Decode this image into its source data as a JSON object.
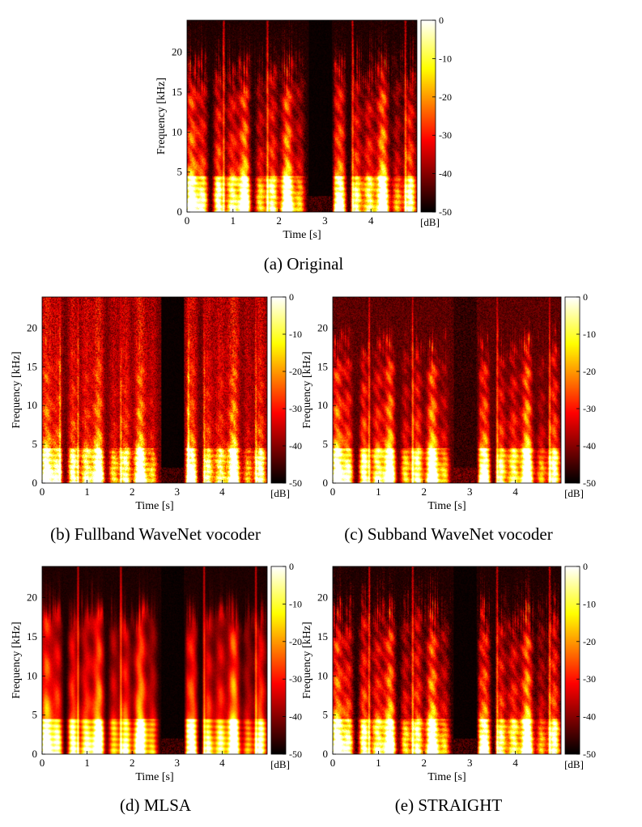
{
  "chart_data": [
    {
      "type": "heatmap",
      "caption": "(a) Original",
      "xlabel": "Time [s]",
      "ylabel": "Frequency [kHz]",
      "xlim": [
        0,
        5
      ],
      "ylim": [
        0,
        24
      ],
      "xticks": [
        0,
        1,
        2,
        3,
        4
      ],
      "yticks": [
        0,
        5,
        10,
        15,
        20
      ],
      "colorbar": {
        "label": "[dB]",
        "range": [
          -50,
          0
        ],
        "ticks": [
          0,
          -10,
          -20,
          -30,
          -40,
          -50
        ]
      },
      "colormap": "hot",
      "silence_intervals_s": [
        [
          2.65,
          3.15
        ]
      ],
      "transient_times_s": [
        0.8,
        1.75,
        3.6,
        4.75
      ],
      "noise_floor": "low",
      "smoothness": "natural"
    },
    {
      "type": "heatmap",
      "caption": "(b) Fullband WaveNet vocoder",
      "xlabel": "Time [s]",
      "ylabel": "Frequency [kHz]",
      "xlim": [
        0,
        5
      ],
      "ylim": [
        0,
        24
      ],
      "xticks": [
        0,
        1,
        2,
        3,
        4
      ],
      "yticks": [
        0,
        5,
        10,
        15,
        20
      ],
      "colorbar": {
        "label": "[dB]",
        "range": [
          -50,
          0
        ],
        "ticks": [
          0,
          -10,
          -20,
          -30,
          -40,
          -50
        ]
      },
      "colormap": "hot",
      "silence_intervals_s": [
        [
          2.65,
          3.15
        ]
      ],
      "transient_times_s": [
        0.4,
        0.8,
        1.75,
        3.25,
        3.6,
        4.75
      ],
      "noise_floor": "high",
      "smoothness": "noisy"
    },
    {
      "type": "heatmap",
      "caption": "(c) Subband WaveNet vocoder",
      "xlabel": "Time [s]",
      "ylabel": "Frequency [kHz]",
      "xlim": [
        0,
        5
      ],
      "ylim": [
        0,
        24
      ],
      "xticks": [
        0,
        1,
        2,
        3,
        4
      ],
      "yticks": [
        0,
        5,
        10,
        15,
        20
      ],
      "colorbar": {
        "label": "[dB]",
        "range": [
          -50,
          0
        ],
        "ticks": [
          0,
          -10,
          -20,
          -30,
          -40,
          -50
        ]
      },
      "colormap": "hot",
      "silence_intervals_s": [
        [
          2.65,
          3.15
        ]
      ],
      "transient_times_s": [
        0.8,
        1.75,
        3.6,
        4.75
      ],
      "noise_floor": "medium",
      "smoothness": "natural"
    },
    {
      "type": "heatmap",
      "caption": "(d) MLSA",
      "xlabel": "Time [s]",
      "ylabel": "Frequency [kHz]",
      "xlim": [
        0,
        5
      ],
      "ylim": [
        0,
        24
      ],
      "xticks": [
        0,
        1,
        2,
        3,
        4
      ],
      "yticks": [
        0,
        5,
        10,
        15,
        20
      ],
      "colorbar": {
        "label": "[dB]",
        "range": [
          -50,
          0
        ],
        "ticks": [
          0,
          -10,
          -20,
          -30,
          -40,
          -50
        ]
      },
      "colormap": "hot",
      "silence_intervals_s": [
        [
          2.65,
          3.15
        ]
      ],
      "transient_times_s": [
        0.8,
        1.75,
        3.6,
        4.75
      ],
      "noise_floor": "low",
      "smoothness": "smooth"
    },
    {
      "type": "heatmap",
      "caption": "(e) STRAIGHT",
      "xlabel": "Time [s]",
      "ylabel": "Frequency [kHz]",
      "xlim": [
        0,
        5
      ],
      "ylim": [
        0,
        24
      ],
      "xticks": [
        0,
        1,
        2,
        3,
        4
      ],
      "yticks": [
        0,
        5,
        10,
        15,
        20
      ],
      "colorbar": {
        "label": "[dB]",
        "range": [
          -50,
          0
        ],
        "ticks": [
          0,
          -10,
          -20,
          -30,
          -40,
          -50
        ]
      },
      "colormap": "hot",
      "silence_intervals_s": [
        [
          2.65,
          3.15
        ]
      ],
      "transient_times_s": [
        0.8,
        1.75,
        3.6,
        4.75
      ],
      "noise_floor": "low",
      "smoothness": "natural"
    }
  ]
}
